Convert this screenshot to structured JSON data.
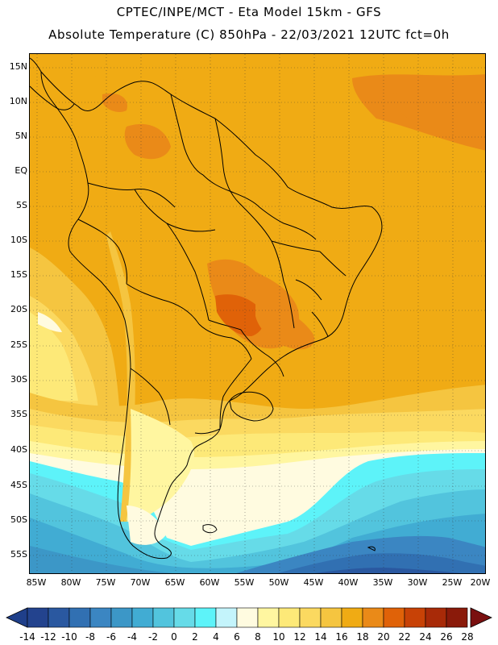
{
  "header": {
    "line1": "CPTEC/INPE/MCT -  Eta Model 15km - GFS",
    "line2": "Absolute Temperature (C) 850hPa - 22/03/2021 12UTC fct=0h"
  },
  "axes": {
    "lat_labels": [
      "15N",
      "10N",
      "5N",
      "EQ",
      "5S",
      "10S",
      "15S",
      "20S",
      "25S",
      "30S",
      "35S",
      "40S",
      "45S",
      "50S",
      "55S"
    ],
    "lon_labels": [
      "85W",
      "80W",
      "75W",
      "70W",
      "65W",
      "60W",
      "55W",
      "50W",
      "45W",
      "40W",
      "35W",
      "30W",
      "25W",
      "20W"
    ]
  },
  "colorbar": {
    "labels": [
      "-14",
      "-12",
      "-10",
      "-8",
      "-6",
      "-4",
      "-2",
      "0",
      "2",
      "4",
      "6",
      "8",
      "10",
      "12",
      "14",
      "16",
      "18",
      "20",
      "22",
      "24",
      "26",
      "28"
    ],
    "low_color": "#1f3f8a",
    "high_color": "#7a1010",
    "colors": [
      "#23438e",
      "#2a58a0",
      "#3170b2",
      "#3b86c2",
      "#3c97c7",
      "#41acd3",
      "#52c4dd",
      "#66dbe8",
      "#5df3f9",
      "#c4f4fb",
      "#fffbe0",
      "#fff6a0",
      "#fde978",
      "#fbd960",
      "#f5c540",
      "#f0ab14",
      "#ea8a18",
      "#e06208",
      "#c84206",
      "#a82a08",
      "#8a1a0a"
    ]
  }
}
